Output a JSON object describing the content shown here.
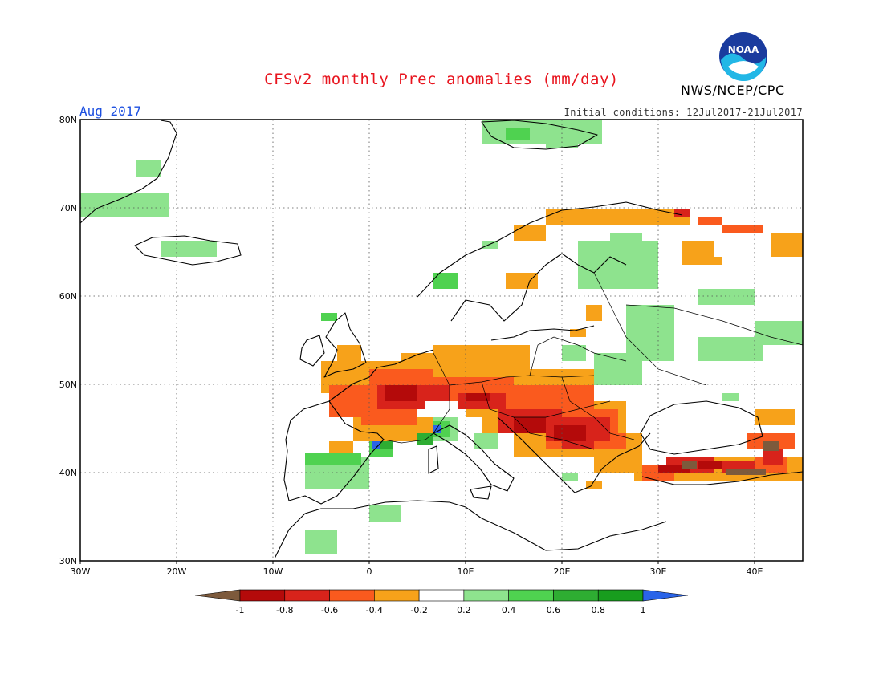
{
  "header": {
    "title": "CFSv2 monthly Prec anomalies (mm/day)",
    "agency": "NWS/NCEP/CPC",
    "month": "Aug 2017",
    "initial_conditions": "Initial conditions: 12Jul2017-21Jul2017",
    "logo_text": "NOAA"
  },
  "map": {
    "lon_range": [
      -30,
      45
    ],
    "lat_range": [
      30,
      80
    ],
    "lon_ticks": [
      "30W",
      "20W",
      "10W",
      "0",
      "10E",
      "20E",
      "30E",
      "40E"
    ],
    "lat_ticks": [
      "30N",
      "40N",
      "50N",
      "60N",
      "70N",
      "80N"
    ],
    "gridlines": "dotted"
  },
  "legend": {
    "ticks": [
      "-1",
      "-0.8",
      "-0.6",
      "-0.4",
      "-0.2",
      "0.2",
      "0.4",
      "0.6",
      "0.8",
      "1"
    ],
    "colors": [
      "#7d5a3c",
      "#b40a0a",
      "#d8231b",
      "#fa5a1e",
      "#f7a21a",
      "#ffffff",
      "#8ee38e",
      "#4fd250",
      "#2ead32",
      "#189d1e",
      "#2a64e8"
    ]
  }
}
